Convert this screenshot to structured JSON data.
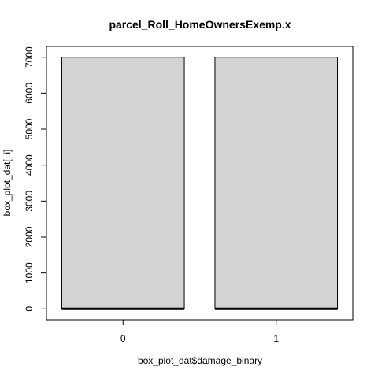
{
  "chart_data": {
    "type": "boxplot",
    "title": "parcel_Roll_HomeOwnersExemp.x",
    "xlabel": "box_plot_dat$damage_binary",
    "ylabel": "box_plot_dat[, i]",
    "categories": [
      "0",
      "1"
    ],
    "yticks": [
      0,
      1000,
      2000,
      3000,
      4000,
      5000,
      6000,
      7000
    ],
    "ylim": [
      -300,
      7300
    ],
    "boxes": [
      {
        "category": "0",
        "min": 0,
        "q1": 0,
        "median": 0,
        "q3": 7000,
        "max": 7000
      },
      {
        "category": "1",
        "min": 0,
        "q1": 0,
        "median": 0,
        "q3": 7000,
        "max": 7000
      }
    ],
    "box_fill": "#d3d3d3",
    "grid": false,
    "legend": "none"
  }
}
